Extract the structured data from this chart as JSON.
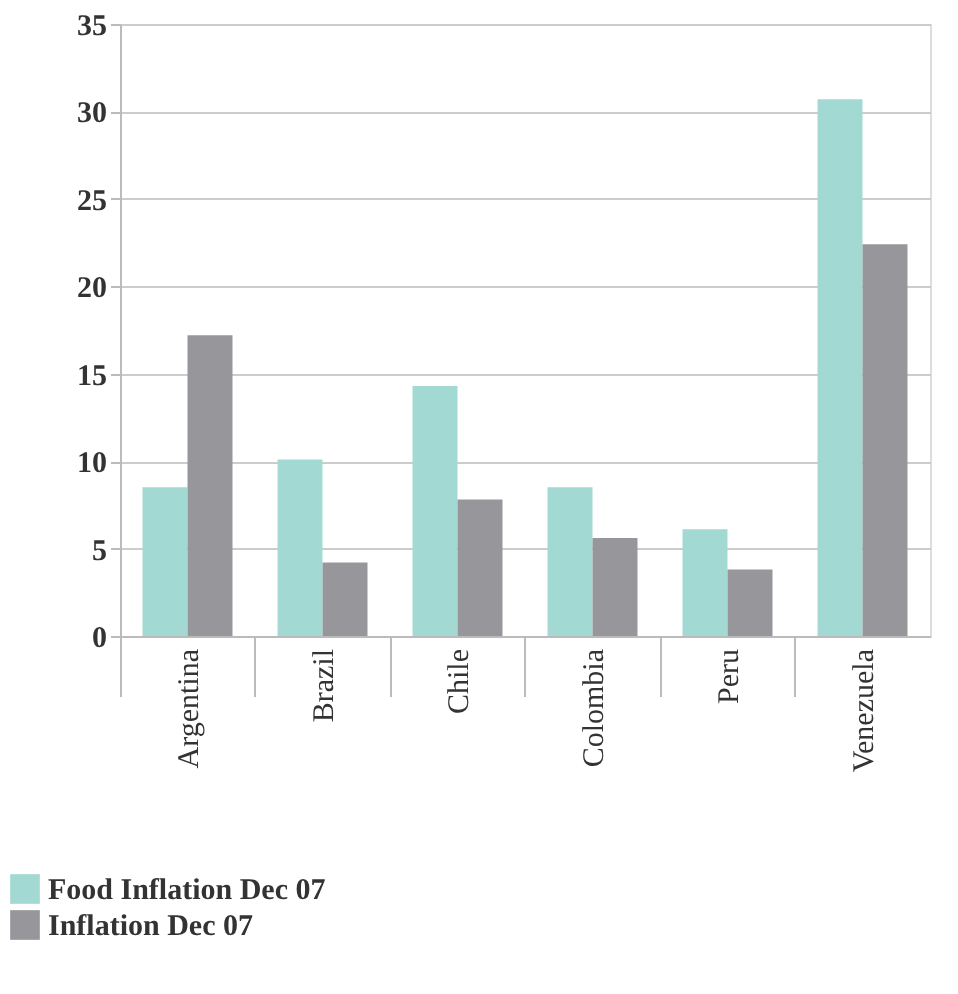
{
  "chart_data": {
    "type": "bar",
    "categories": [
      "Argentina",
      "Brazil",
      "Chile",
      "Colombia",
      "Peru",
      "Venezuela"
    ],
    "series": [
      {
        "name": "Food Inflation Dec 07",
        "color": "#a3d9d3",
        "values": [
          8.5,
          10.1,
          14.3,
          8.5,
          6.1,
          30.7
        ]
      },
      {
        "name": "Inflation Dec 07",
        "color": "#97979b",
        "values": [
          17.2,
          4.2,
          7.8,
          5.6,
          3.8,
          22.4
        ]
      }
    ],
    "ylim": [
      0,
      35
    ],
    "yticks": [
      0,
      5,
      10,
      15,
      20,
      25,
      30,
      35
    ],
    "grid": "y",
    "legend": "bottom left"
  }
}
